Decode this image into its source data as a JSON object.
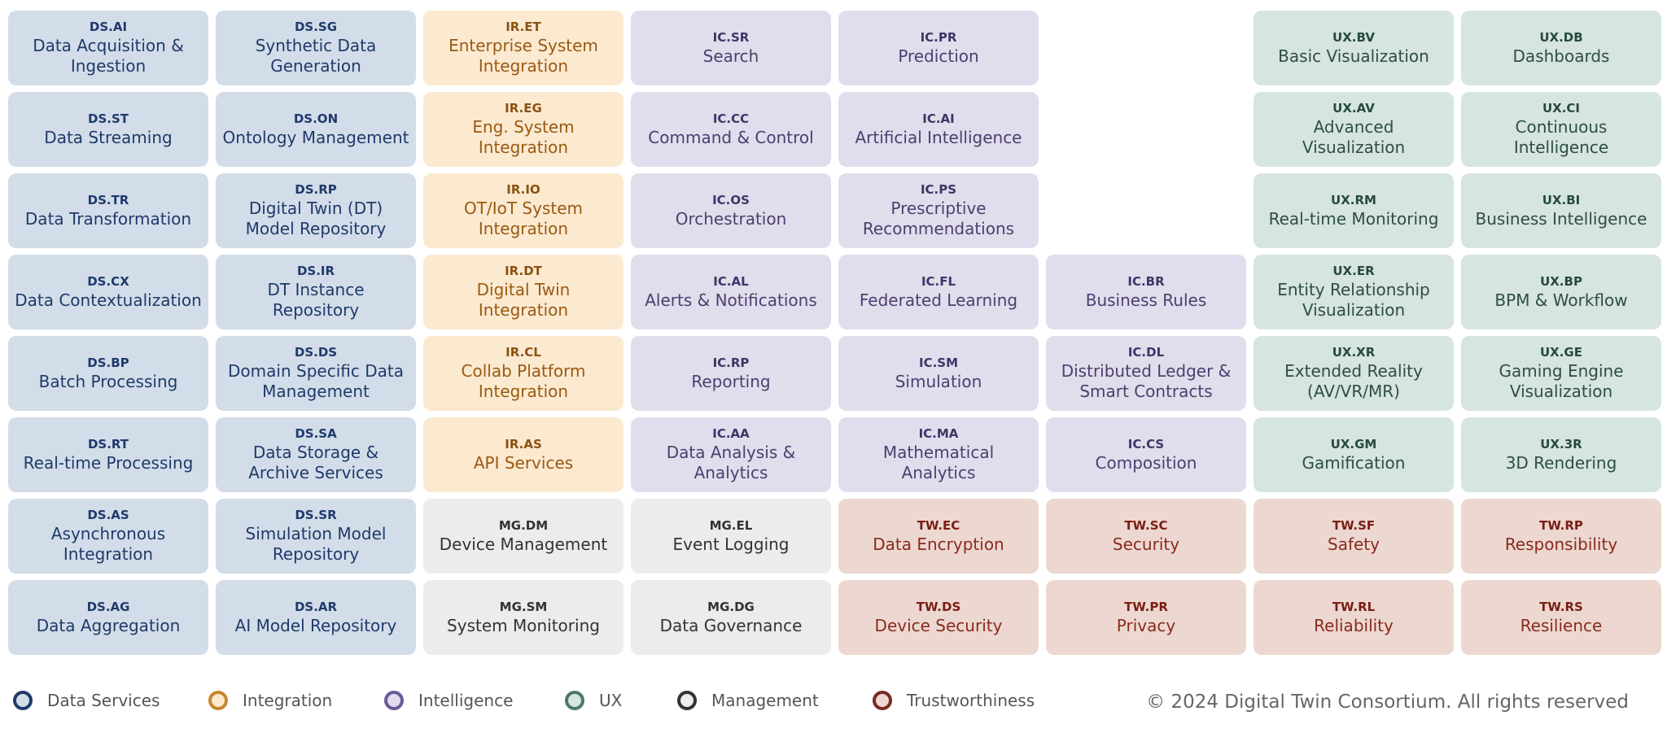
{
  "groups": [
    {
      "name": "Data Services",
      "cells": [
        {
          "code": "DS.AI",
          "name": "Data Acquisition & Ingestion"
        },
        {
          "code": "DS.SG",
          "name": "Synthetic Data Generation"
        },
        {
          "code": "DS.ST",
          "name": "Data Streaming"
        },
        {
          "code": "DS.ON",
          "name": "Ontology Management"
        },
        {
          "code": "DS.TR",
          "name": "Data Transformation"
        },
        {
          "code": "DS.RP",
          "name": "Digital Twin (DT) Model Repository"
        },
        {
          "code": "DS.CX",
          "name": "Data Contextualization"
        },
        {
          "code": "DS.IR",
          "name": "DT Instance Repository"
        },
        {
          "code": "DS.BP",
          "name": "Batch Processing"
        },
        {
          "code": "DS.DS",
          "name": "Domain Specific Data Management"
        },
        {
          "code": "DS.RT",
          "name": "Real-time Processing"
        },
        {
          "code": "DS.SA",
          "name": "Data Storage & Archive Services"
        },
        {
          "code": "DS.AS",
          "name": "Asynchronous Integration"
        },
        {
          "code": "DS.SR",
          "name": "Simulation Model Repository"
        },
        {
          "code": "DS.AG",
          "name": "Data Aggregation"
        },
        {
          "code": "DS.AR",
          "name": "AI Model Repository"
        }
      ]
    },
    {
      "name": "Integration",
      "cells": [
        {
          "code": "IR.ET",
          "name": "Enterprise System Integration"
        },
        {
          "code": "IR.EG",
          "name": "Eng. System Integration"
        },
        {
          "code": "IR.IO",
          "name": "OT/IoT System Integration"
        },
        {
          "code": "IR.DT",
          "name": "Digital Twin Integration"
        },
        {
          "code": "IR.CL",
          "name": "Collab Platform Integration"
        },
        {
          "code": "IR.AS",
          "name": "API Services"
        }
      ]
    },
    {
      "name": "Intelligence",
      "cells": [
        {
          "code": "IC.SR",
          "name": "Search"
        },
        {
          "code": "IC.PR",
          "name": "Prediction"
        },
        {
          "code": "IC.CC",
          "name": "Command & Control"
        },
        {
          "code": "IC.AI",
          "name": "Artificial Intelligence"
        },
        {
          "code": "IC.OS",
          "name": "Orchestration"
        },
        {
          "code": "IC.PS",
          "name": "Prescriptive Recommendations"
        },
        {
          "code": "IC.AL",
          "name": "Alerts & Notifications"
        },
        {
          "code": "IC.FL",
          "name": "Federated Learning"
        },
        {
          "code": "IC.BR",
          "name": "Business Rules"
        },
        {
          "code": "IC.RP",
          "name": "Reporting"
        },
        {
          "code": "IC.SM",
          "name": "Simulation"
        },
        {
          "code": "IC.DL",
          "name": "Distributed Ledger & Smart Contracts"
        },
        {
          "code": "IC.AA",
          "name": "Data Analysis & Analytics"
        },
        {
          "code": "IC.MA",
          "name": "Mathematical Analytics"
        },
        {
          "code": "IC.CS",
          "name": "Composition"
        }
      ]
    },
    {
      "name": "UX",
      "cells": [
        {
          "code": "UX.BV",
          "name": "Basic Visualization"
        },
        {
          "code": "UX.DB",
          "name": "Dashboards"
        },
        {
          "code": "UX.AV",
          "name": "Advanced Visualization"
        },
        {
          "code": "UX.CI",
          "name": "Continuous Intelligence"
        },
        {
          "code": "UX.RM",
          "name": "Real-time Monitoring"
        },
        {
          "code": "UX.BI",
          "name": "Business Intelligence"
        },
        {
          "code": "UX.ER",
          "name": "Entity Relationship Visualization"
        },
        {
          "code": "UX.BP",
          "name": "BPM & Workflow"
        },
        {
          "code": "UX.XR",
          "name": "Extended Reality (AV/VR/MR)"
        },
        {
          "code": "UX.GE",
          "name": "Gaming Engine Visualization"
        },
        {
          "code": "UX.GM",
          "name": "Gamification"
        },
        {
          "code": "UX.3R",
          "name": "3D Rendering"
        }
      ]
    },
    {
      "name": "Management",
      "cells": [
        {
          "code": "MG.DM",
          "name": "Device Management"
        },
        {
          "code": "MG.EL",
          "name": "Event Logging"
        },
        {
          "code": "MG.SM",
          "name": "System Monitoring"
        },
        {
          "code": "MG.DG",
          "name": "Data Governance"
        }
      ]
    },
    {
      "name": "Trustworthiness",
      "cells": [
        {
          "code": "TW.EC",
          "name": "Data Encryption"
        },
        {
          "code": "TW.SC",
          "name": "Security"
        },
        {
          "code": "TW.SF",
          "name": "Safety"
        },
        {
          "code": "TW.RP",
          "name": "Responsibility"
        },
        {
          "code": "TW.DS",
          "name": "Device Security"
        },
        {
          "code": "TW.PR",
          "name": "Privacy"
        },
        {
          "code": "TW.RL",
          "name": "Reliability"
        },
        {
          "code": "TW.RS",
          "name": "Resilience"
        }
      ]
    }
  ],
  "footer": "© 2024 Digital Twin Consortium. All rights reserved"
}
